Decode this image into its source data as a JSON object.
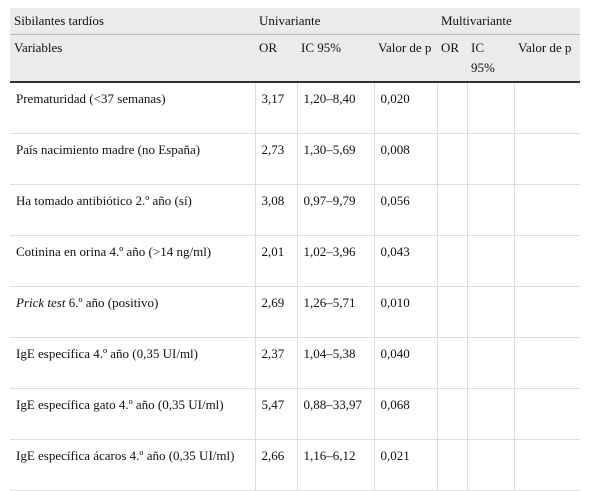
{
  "table": {
    "group_header": [
      "Sibilantes tardíos",
      "Univariante",
      "Multivariante"
    ],
    "column_header": [
      "Variables",
      "OR",
      "IC 95%",
      "Valor de p",
      "OR",
      "IC 95%",
      "Valor de p"
    ],
    "rows": [
      [
        "Prematuridad (<37 semanas)",
        "3,17",
        "1,20–8,40",
        "0,020"
      ],
      [
        "País nacimiento madre (no España)",
        "2,73",
        "1,30–5,69",
        "0,008"
      ],
      [
        "Ha tomado antibiótico 2.º año (sí)",
        "3,08",
        "0,97–9,79",
        "0,056"
      ],
      [
        "Cotinina en orina 4.º año (>14 ng/ml)",
        "2,01",
        "1,02–3,96",
        "0,043"
      ],
      [
        [
          "Prick test",
          " 6.º año (positivo)"
        ],
        "2,69",
        "1,26–5,71",
        "0,010"
      ],
      [
        "IgE específica 4.º año (0,35 UI/ml)",
        "2,37",
        "1,04–5,38",
        "0,040"
      ],
      [
        "IgE específica gato 4.º año (0,35 UI/ml)",
        "5,47",
        "0,88–33,97",
        "0,068"
      ],
      [
        "IgE específica ácaros 4.º año (0,35 UI/ml)",
        "2,66",
        "1,16–6,12",
        "0,021"
      ]
    ]
  }
}
